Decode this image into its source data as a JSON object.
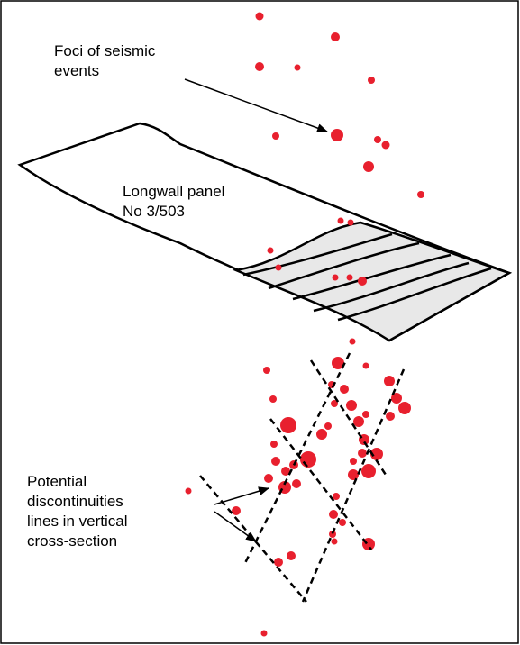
{
  "labels": {
    "foci": [
      "Foci of seismic",
      "events"
    ],
    "panel": [
      "Longwall panel",
      "No 3/503"
    ],
    "discontinuities": [
      "Potential",
      "discontinuities",
      "lines in vertical",
      "cross-section"
    ]
  }
}
